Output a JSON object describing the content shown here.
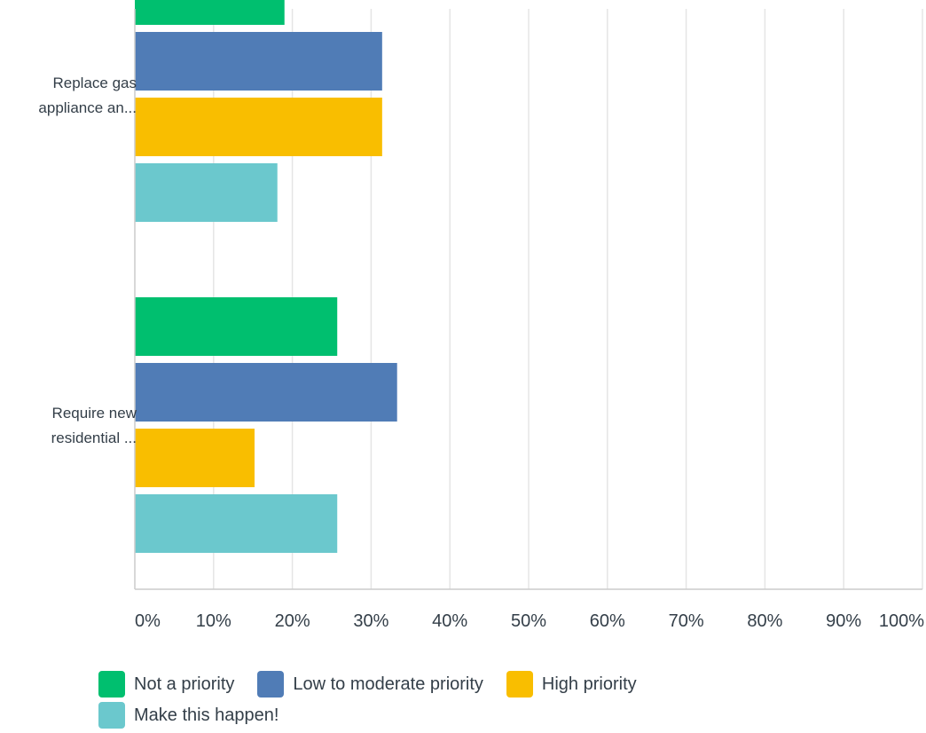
{
  "colors": {
    "not_priority": "#00bf6f",
    "low_moderate": "#507cb6",
    "high": "#f9be00",
    "make_happen": "#6bc8cd",
    "grid": "#e5e5e5",
    "axis": "#cccccc",
    "text": "#333e48"
  },
  "categories": [
    {
      "line1": "Replace gas",
      "line2": "appliance an..."
    },
    {
      "line1": "Require new",
      "line2": "residential ..."
    }
  ],
  "legend": [
    {
      "label": "Not a priority",
      "color": "#00bf6f"
    },
    {
      "label": "Low to moderate priority",
      "color": "#507cb6"
    },
    {
      "label": "High priority",
      "color": "#f9be00"
    },
    {
      "label": "Make this happen!",
      "color": "#6bc8cd"
    }
  ],
  "chart_data": {
    "type": "bar",
    "orientation": "horizontal",
    "categories": [
      "Replace gas appliance an...",
      "Require new residential ..."
    ],
    "series": [
      {
        "name": "Not a priority",
        "values": [
          19,
          25.7
        ]
      },
      {
        "name": "Low to moderate priority",
        "values": [
          31.4,
          33.3
        ]
      },
      {
        "name": "High priority",
        "values": [
          31.4,
          15.2
        ]
      },
      {
        "name": "Make this happen!",
        "values": [
          18.1,
          25.7
        ]
      }
    ],
    "xlim": [
      0,
      100
    ],
    "xticks": [
      "0%",
      "10%",
      "20%",
      "30%",
      "40%",
      "50%",
      "60%",
      "70%",
      "80%",
      "90%",
      "100%"
    ],
    "grid": true,
    "legend_position": "bottom"
  }
}
